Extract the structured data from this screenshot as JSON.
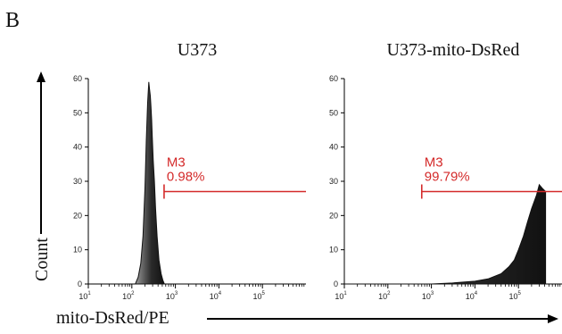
{
  "figure": {
    "panel_letter": "B",
    "x_axis_label": "mito-DsRed/PE",
    "y_axis_label": "Count",
    "colors": {
      "gate": "#d42a2a",
      "histogram_fill": "#3a3a3a",
      "axis": "#000000"
    }
  },
  "chart_data": [
    {
      "type": "area",
      "title": "U373",
      "xlabel": "mito-DsRed/PE",
      "ylabel": "Count",
      "x_scale": "log",
      "xlim": [
        10,
        1000000
      ],
      "ylim": [
        0,
        60
      ],
      "y_ticks": [
        "0",
        "10",
        "20",
        "30",
        "40",
        "50",
        "60"
      ],
      "x_tick_exponents": [
        "1",
        "2",
        "3",
        "4",
        "5"
      ],
      "x_tick_base": "10",
      "series": [
        {
          "x": [
            120,
            140,
            160,
            180,
            200,
            215,
            230,
            245,
            255,
            265,
            275,
            285,
            295,
            310,
            330,
            350,
            380,
            420,
            470,
            520,
            560
          ],
          "y": [
            0,
            2,
            6,
            14,
            28,
            42,
            53,
            59,
            57,
            55,
            52,
            48,
            43,
            36,
            30,
            22,
            14,
            7,
            3,
            1,
            0
          ]
        }
      ],
      "gate": {
        "label": "M3",
        "percent": "0.98%",
        "x_start": 550,
        "x_end": 1000000,
        "y": 27
      }
    },
    {
      "type": "area",
      "title": "U373-mito-DsRed",
      "xlabel": "mito-DsRed/PE",
      "ylabel": "Count",
      "x_scale": "log",
      "xlim": [
        10,
        1000000
      ],
      "ylim": [
        0,
        60
      ],
      "y_ticks": [
        "0",
        "10",
        "20",
        "30",
        "40",
        "50",
        "60"
      ],
      "x_tick_exponents": [
        "1",
        "2",
        "3",
        "4",
        "5"
      ],
      "x_tick_base": "10",
      "series": [
        {
          "x": [
            10,
            300,
            1000,
            3000,
            10000,
            20000,
            40000,
            60000,
            80000,
            100000,
            130000,
            160000,
            200000,
            260000,
            300000,
            350000,
            420000
          ],
          "y": [
            0,
            0,
            0,
            0.3,
            0.8,
            1.5,
            3,
            5,
            7,
            10,
            14,
            18,
            22,
            26,
            29,
            28,
            27
          ]
        }
      ],
      "gate": {
        "label": "M3",
        "percent": "99.79%",
        "x_start": 600,
        "x_end": 1000000,
        "y": 27
      }
    }
  ]
}
